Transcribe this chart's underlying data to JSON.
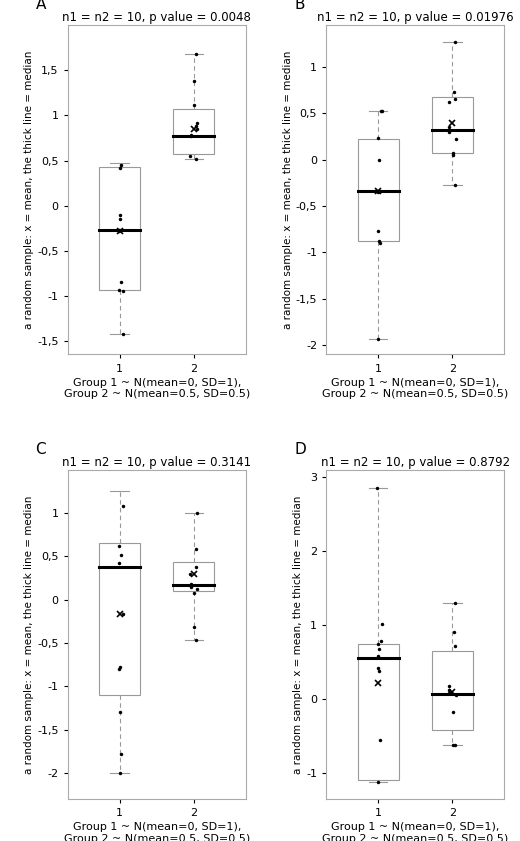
{
  "panels": [
    {
      "label": "A",
      "title": "n1 = n2 = 10, p value = 0.0048",
      "g1": {
        "points": [
          0.42,
          0.45,
          -0.1,
          -0.15,
          -0.93,
          -0.85,
          -0.28,
          -0.95,
          -1.42,
          -0.27
        ],
        "q1": -0.93,
        "median": -0.27,
        "q3": 0.43,
        "wlow": -1.42,
        "whigh": 0.47,
        "mean": -0.28
      },
      "g2": {
        "points": [
          1.68,
          1.38,
          1.12,
          0.92,
          0.78,
          0.77,
          0.55,
          0.52,
          0.88,
          0.845
        ],
        "q1": 0.57,
        "median": 0.775,
        "q3": 1.07,
        "wlow": 0.52,
        "whigh": 1.68,
        "mean": 0.845
      },
      "ylim": [
        -1.65,
        2.0
      ],
      "yticks": [
        -1.5,
        -1.0,
        -0.5,
        0.0,
        0.5,
        1.0,
        1.5
      ]
    },
    {
      "label": "B",
      "title": "n1 = n2 = 10, p value = 0.01976",
      "g1": {
        "points": [
          -1.93,
          -0.9,
          -0.88,
          -0.77,
          -0.35,
          0.0,
          0.23,
          0.52,
          0.53,
          -0.34
        ],
        "q1": -0.88,
        "median": -0.34,
        "q3": 0.22,
        "wlow": -1.93,
        "whigh": 0.53,
        "mean": -0.34
      },
      "g2": {
        "points": [
          -0.27,
          0.05,
          0.07,
          0.22,
          0.3,
          0.35,
          0.62,
          0.65,
          0.73,
          1.27
        ],
        "q1": 0.07,
        "median": 0.325,
        "q3": 0.68,
        "wlow": -0.27,
        "whigh": 1.27,
        "mean": 0.4
      },
      "ylim": [
        -2.1,
        1.45
      ],
      "yticks": [
        -2.0,
        -1.5,
        -1.0,
        -0.5,
        0.0,
        0.5,
        1.0
      ]
    },
    {
      "label": "C",
      "title": "n1 = n2 = 10, p value = 0.3141",
      "g1": {
        "points": [
          -2.0,
          -1.78,
          -1.3,
          -0.78,
          0.42,
          0.52,
          0.62,
          1.08,
          -0.16,
          -0.8
        ],
        "q1": -1.1,
        "median": 0.38,
        "q3": 0.65,
        "wlow": -2.0,
        "whigh": 1.25,
        "mean": -0.16
      },
      "g2": {
        "points": [
          -0.47,
          -0.32,
          0.08,
          0.12,
          0.15,
          0.18,
          0.3,
          0.38,
          0.58,
          1.0
        ],
        "q1": 0.1,
        "median": 0.165,
        "q3": 0.44,
        "wlow": -0.47,
        "whigh": 1.0,
        "mean": 0.3
      },
      "ylim": [
        -2.3,
        1.5
      ],
      "yticks": [
        -2.0,
        -1.5,
        -1.0,
        -0.5,
        0.0,
        0.5,
        1.0
      ]
    },
    {
      "label": "D",
      "title": "n1 = n2 = 10, p value = 0.8792",
      "g1": {
        "points": [
          -1.12,
          -0.55,
          0.38,
          0.42,
          0.58,
          0.68,
          0.75,
          0.78,
          1.02,
          2.85
        ],
        "q1": -1.1,
        "median": 0.55,
        "q3": 0.75,
        "wlow": -1.12,
        "whigh": 2.85,
        "mean": 0.22
      },
      "g2": {
        "points": [
          -0.62,
          -0.62,
          -0.18,
          0.05,
          0.08,
          0.12,
          0.18,
          0.72,
          0.9,
          1.3
        ],
        "q1": -0.42,
        "median": 0.07,
        "q3": 0.65,
        "wlow": -0.62,
        "whigh": 1.3,
        "mean": 0.1
      },
      "ylim": [
        -1.35,
        3.1
      ],
      "yticks": [
        -1.0,
        0.0,
        1.0,
        2.0,
        3.0
      ]
    }
  ],
  "xlabel_line1": "Group 1 ~ N(mean=0, SD=1),",
  "xlabel_line2": "Group 2 ~ N(mean=0.5, SD=0.5)",
  "ylabel": "a random sample: x = mean, the thick line = median",
  "title_fontsize": 8.5,
  "label_fontsize": 8,
  "tick_fontsize": 8,
  "ylabel_fontsize": 7.5
}
